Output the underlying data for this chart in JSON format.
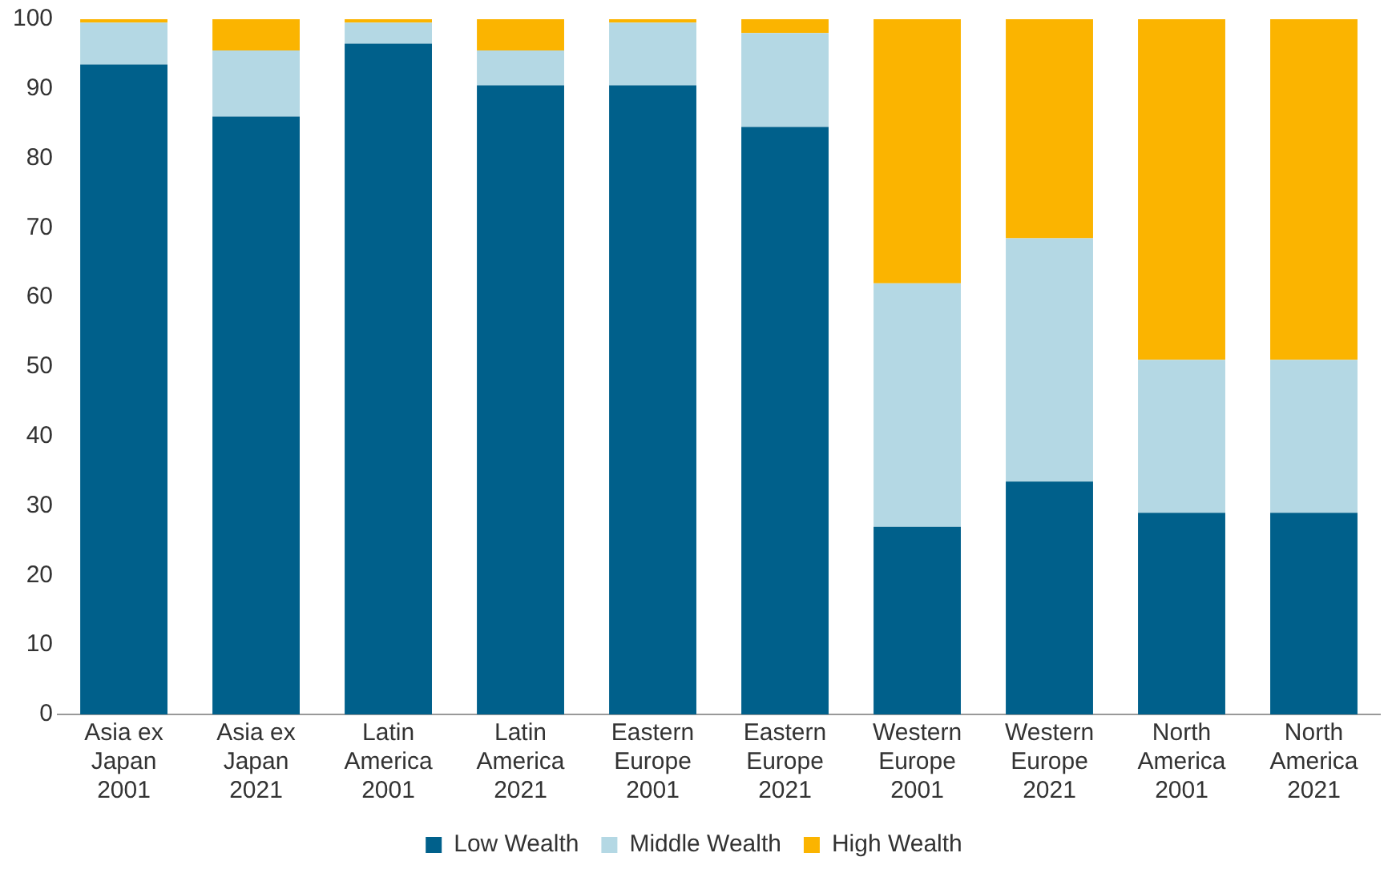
{
  "chart_data": {
    "type": "bar",
    "stacked": true,
    "categories": [
      "Asia ex\nJapan\n2001",
      "Asia ex\nJapan\n2021",
      "Latin\nAmerica\n2001",
      "Latin\nAmerica\n2021",
      "Eastern\nEurope\n2001",
      "Eastern\nEurope\n2021",
      "Western\nEurope\n2001",
      "Western\nEurope\n2021",
      "North\nAmerica\n2001",
      "North\nAmerica\n2021"
    ],
    "series": [
      {
        "name": "Low Wealth",
        "color": "#00608b",
        "values": [
          93.5,
          86,
          96.5,
          90.5,
          90.5,
          84.5,
          27,
          33.5,
          29,
          29
        ]
      },
      {
        "name": "Middle Wealth",
        "color": "#b4d8e4",
        "values": [
          6,
          9.5,
          3,
          5,
          9,
          13.5,
          35,
          35,
          22,
          22
        ]
      },
      {
        "name": "High Wealth",
        "color": "#fbb400",
        "values": [
          0.5,
          4.5,
          0.5,
          4.5,
          0.5,
          2,
          38,
          31.5,
          49,
          49
        ]
      }
    ],
    "ylim": [
      0,
      100
    ],
    "yticks": [
      0,
      10,
      20,
      30,
      40,
      50,
      60,
      70,
      80,
      90,
      100
    ],
    "grid": false,
    "legend": "bottom",
    "marker": "square"
  }
}
